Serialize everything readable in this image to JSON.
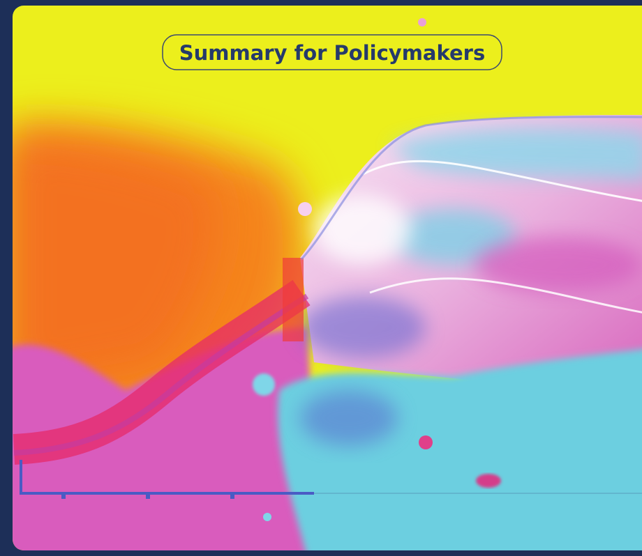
{
  "cover": {
    "title": "Summary for Policymakers"
  }
}
